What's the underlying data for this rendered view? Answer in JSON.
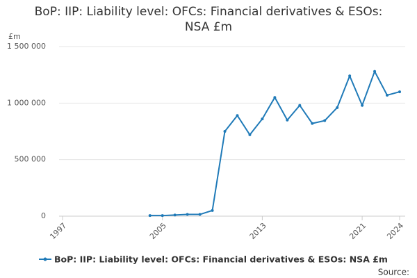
{
  "chart_data": {
    "type": "line",
    "title": "BoP: IIP: Liability level: OFCs: Financial derivatives & ESOs: NSA £m",
    "y_unit_label": "£m",
    "source_label": "Source:",
    "x": [
      2004,
      2005,
      2006,
      2007,
      2008,
      2009,
      2010,
      2011,
      2012,
      2013,
      2014,
      2015,
      2016,
      2017,
      2018,
      2019,
      2020,
      2021,
      2022,
      2023,
      2024
    ],
    "series": [
      {
        "name": "BoP: IIP: Liability level: OFCs: Financial derivatives & ESOs: NSA £m",
        "color": "#1f7ab8",
        "values": [
          5000,
          5000,
          10000,
          15000,
          15000,
          50000,
          750000,
          890000,
          720000,
          860000,
          1050000,
          850000,
          980000,
          820000,
          845000,
          960000,
          1240000,
          980000,
          1280000,
          1070000,
          1100000
        ]
      }
    ],
    "xlim": [
      1997,
      2024
    ],
    "xticks": [
      1997,
      2005,
      2013,
      2021,
      2024
    ],
    "ylim": [
      0,
      1500000
    ],
    "yticks": [
      0,
      {
        "value": 500000,
        "label": "500 000"
      },
      {
        "value": 1000000,
        "label": "1 000 000"
      },
      {
        "value": 1500000,
        "label": "1 500 000"
      }
    ],
    "grid": true
  }
}
